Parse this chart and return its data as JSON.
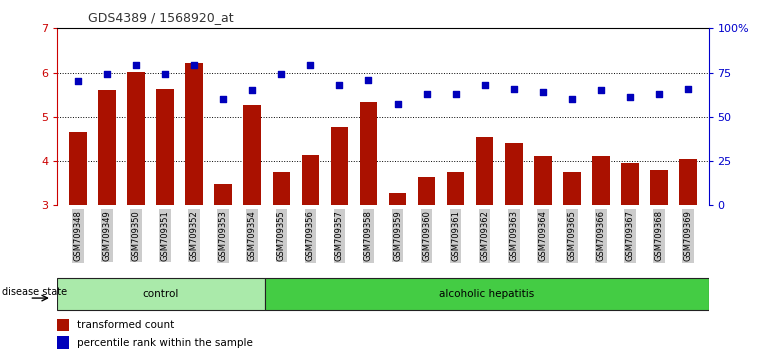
{
  "title": "GDS4389 / 1568920_at",
  "samples": [
    "GSM709348",
    "GSM709349",
    "GSM709350",
    "GSM709351",
    "GSM709352",
    "GSM709353",
    "GSM709354",
    "GSM709355",
    "GSM709356",
    "GSM709357",
    "GSM709358",
    "GSM709359",
    "GSM709360",
    "GSM709361",
    "GSM709362",
    "GSM709363",
    "GSM709364",
    "GSM709365",
    "GSM709366",
    "GSM709367",
    "GSM709368",
    "GSM709369"
  ],
  "transformed_count": [
    4.65,
    5.6,
    6.02,
    5.62,
    6.22,
    3.48,
    5.27,
    3.76,
    4.13,
    4.76,
    5.33,
    3.28,
    3.65,
    3.76,
    4.55,
    4.4,
    4.12,
    3.76,
    4.12,
    3.96,
    3.8,
    4.05
  ],
  "percentile_rank": [
    70,
    74,
    79,
    74,
    79,
    60,
    65,
    74,
    79,
    68,
    71,
    57,
    63,
    63,
    68,
    66,
    64,
    60,
    65,
    61,
    63,
    66
  ],
  "bar_color": "#aa1100",
  "dot_color": "#0000bb",
  "ylim_left": [
    3,
    7
  ],
  "ylim_right": [
    0,
    100
  ],
  "yticks_left": [
    3,
    4,
    5,
    6,
    7
  ],
  "yticks_right": [
    0,
    25,
    50,
    75,
    100
  ],
  "ytick_labels_right": [
    "0",
    "25",
    "50",
    "75",
    "100%"
  ],
  "control_samples": 7,
  "control_label": "control",
  "alcoholic_label": "alcoholic hepatitis",
  "disease_state_label": "disease state",
  "legend_bar_label": "transformed count",
  "legend_dot_label": "percentile rank within the sample",
  "control_color": "#aaeaaa",
  "alcoholic_color": "#44cc44",
  "title_color": "#333333",
  "left_axis_color": "#cc0000",
  "right_axis_color": "#0000cc"
}
